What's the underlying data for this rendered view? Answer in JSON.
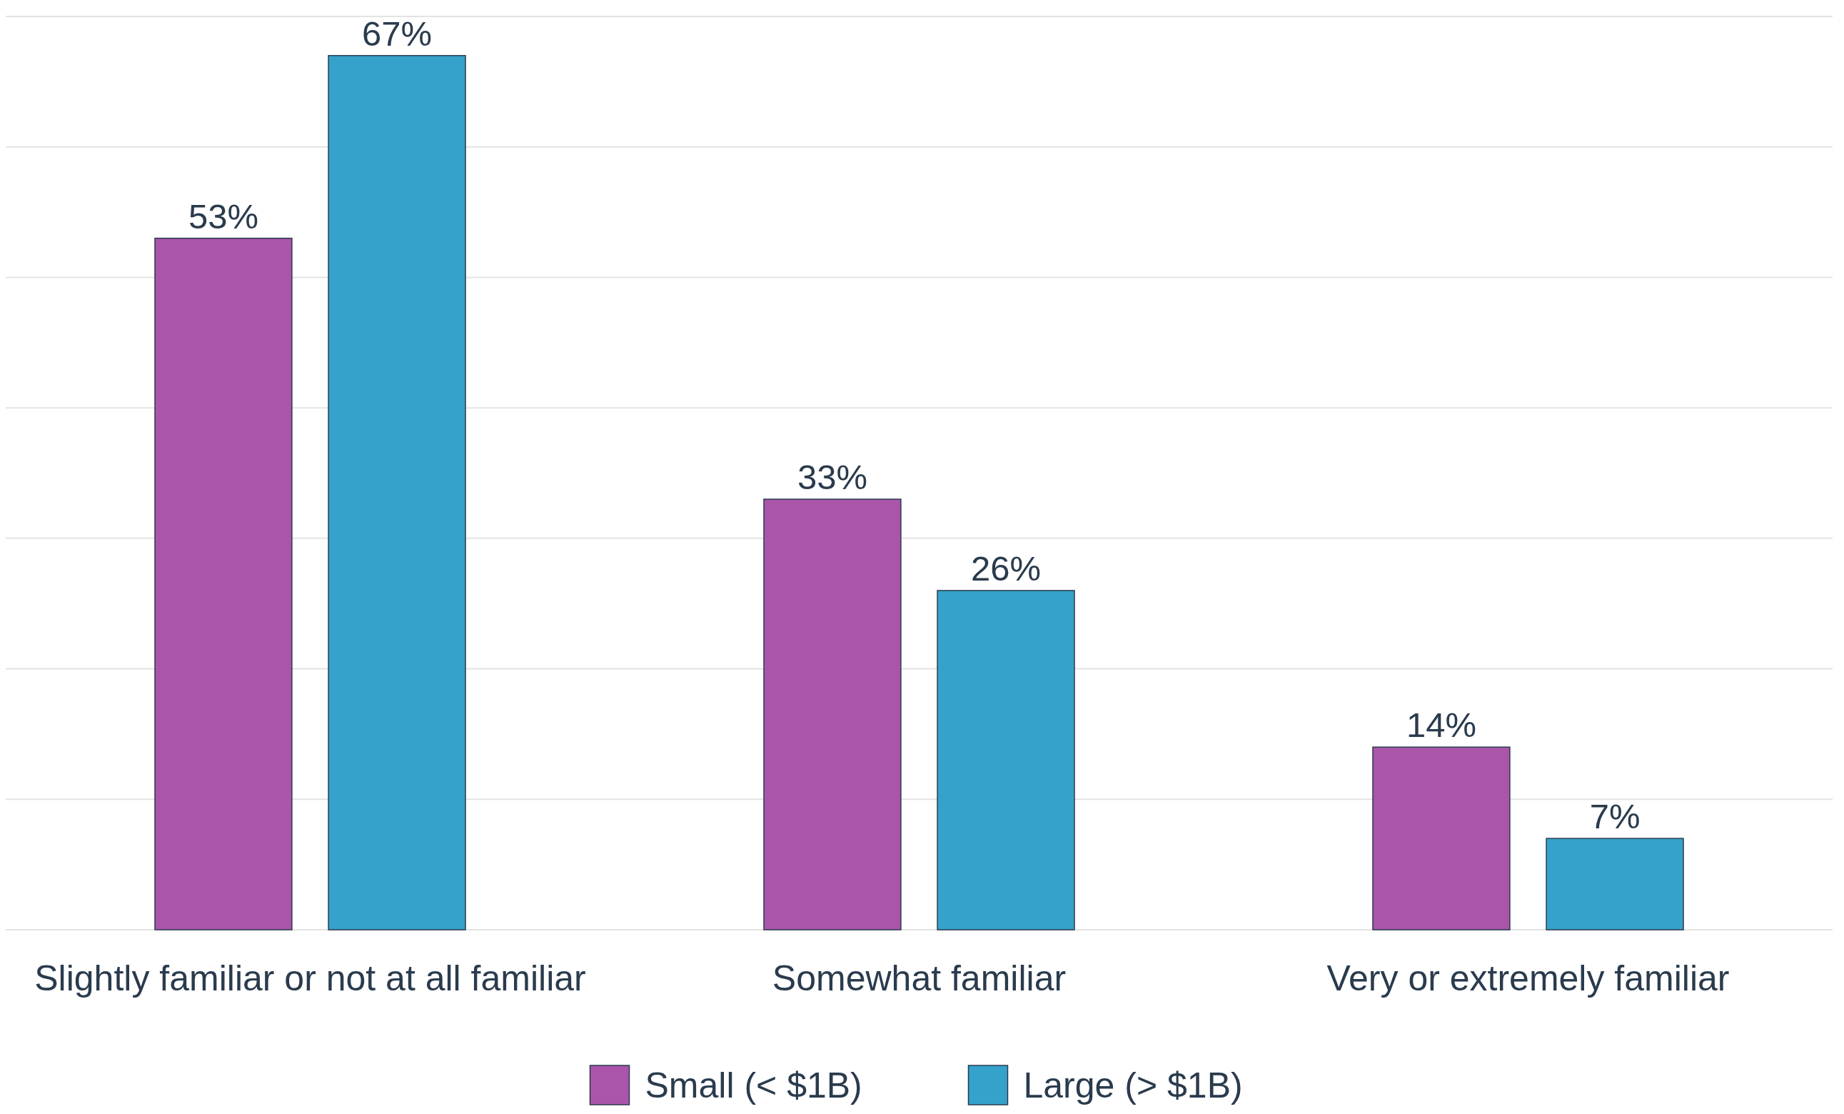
{
  "chart_data": {
    "type": "bar",
    "categories": [
      "Slightly familiar or not at all familiar",
      "Somewhat familiar",
      "Very or extremely familiar"
    ],
    "series": [
      {
        "name": "Small (< $1B)",
        "color": "#aa55aa",
        "values": [
          53,
          33,
          14
        ],
        "value_labels": [
          "53%",
          "33%",
          "14%"
        ]
      },
      {
        "name": "Large (> $1B)",
        "color": "#35a2cb",
        "values": [
          67,
          26,
          7
        ],
        "value_labels": [
          "67%",
          "26%",
          "7%"
        ]
      }
    ],
    "grid": "y",
    "tick_labels": "x",
    "legend": "bottom"
  }
}
